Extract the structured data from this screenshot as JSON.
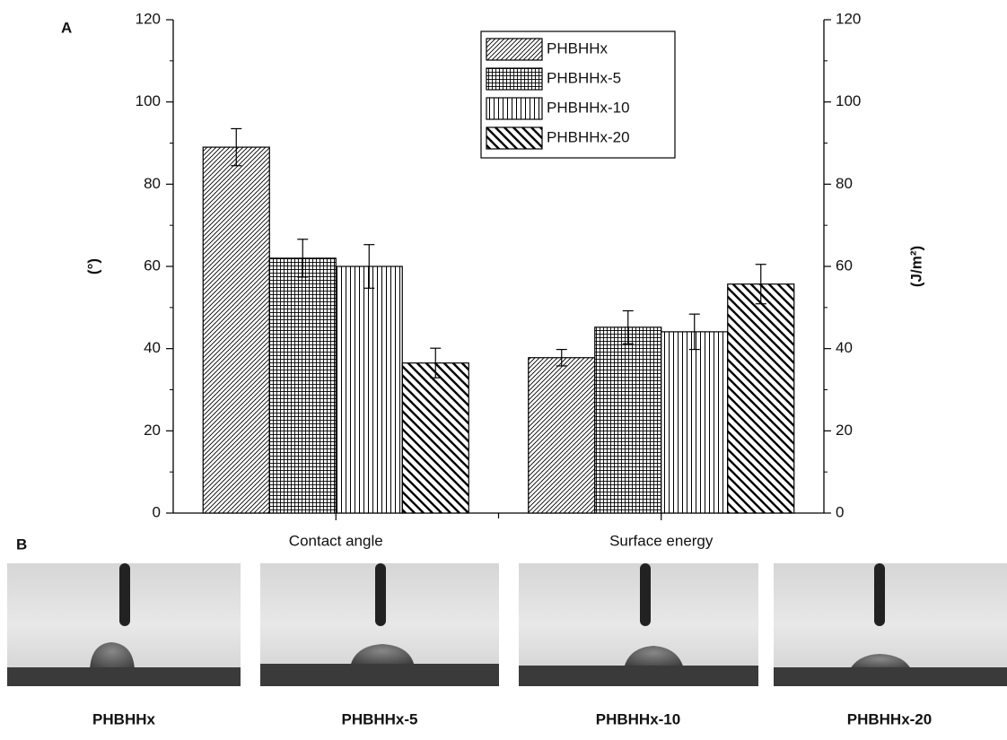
{
  "panel_labels": [
    "A",
    "B"
  ],
  "chart_data": {
    "type": "bar",
    "ylabel": "(°)",
    "y2label": "(J/m²)",
    "categories": [
      "Contact angle",
      "Surface energy"
    ],
    "series": [
      {
        "name": "PHBHHx",
        "color": "#000000",
        "pattern": "diagonal-up",
        "values": [
          89,
          37.8
        ],
        "errors": [
          4.5,
          2
        ]
      },
      {
        "name": "PHBHHx-5",
        "color": "#000000",
        "pattern": "grid",
        "values": [
          62,
          45.2
        ],
        "errors": [
          4.6,
          4
        ]
      },
      {
        "name": "PHBHHx-10",
        "color": "#000000",
        "pattern": "vertical",
        "values": [
          60,
          44.1
        ],
        "errors": [
          5.3,
          4.3
        ]
      },
      {
        "name": "PHBHHx-20",
        "color": "#000000",
        "pattern": "diagonal-down",
        "values": [
          36.5,
          55.7
        ],
        "errors": [
          3.6,
          4.8
        ]
      }
    ],
    "ylim": [
      0,
      120
    ],
    "yticks": [
      0,
      20,
      40,
      60,
      80,
      100,
      120
    ],
    "y2lim": [
      0,
      120
    ],
    "y2ticks": [
      0,
      20,
      40,
      60,
      80,
      100,
      120
    ],
    "legend": "top-right"
  },
  "photos": [
    "PHBHHx",
    "PHBHHx-5",
    "PHBHHx-10",
    "PHBHHx-20"
  ]
}
